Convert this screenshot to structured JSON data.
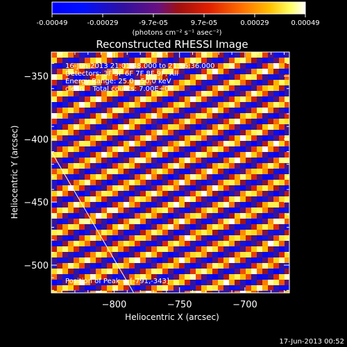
{
  "colorbar": {
    "ticks": [
      "-0.00049",
      "-0.00029",
      "-9.7e-05",
      "9.7e-05",
      "0.00029",
      "0.00049"
    ],
    "unit_label": "(photons cm⁻² s⁻¹ asec⁻²)",
    "range": [
      -0.00049,
      0.00049
    ]
  },
  "chart_data": {
    "type": "heatmap",
    "title": "Reconstructed RHESSI Image",
    "xlabel": "Heliocentric X (arcsec)",
    "ylabel": "Heliocentric Y (arcsec)",
    "xlim": [
      -848,
      -666
    ],
    "ylim": [
      -522,
      -331
    ],
    "xticks": [
      -800,
      -750,
      -700
    ],
    "yticks": [
      -350,
      -400,
      -450,
      -500
    ],
    "grid": false,
    "info_lines": [
      "16-Jun-2013 21:01:48.000 to 21:56:36.000",
      "Detectors: 3F 5F 6F 7F 8F 9F, All",
      "Energy Range: 25.0 - 50.0 keV",
      "clean    Total counts: 7.00E+03"
    ],
    "peak_label": "Position of Peak = [-791,-343]",
    "pattern": {
      "description": "diagonal fringe stripes rising to the right",
      "peak": [
        -791,
        -343
      ]
    },
    "limb_line": {
      "x": [
        -848,
        -785
      ],
      "y": [
        -410,
        -522
      ]
    }
  },
  "footer": {
    "timestamp": "17-Jun-2013 00:52"
  }
}
